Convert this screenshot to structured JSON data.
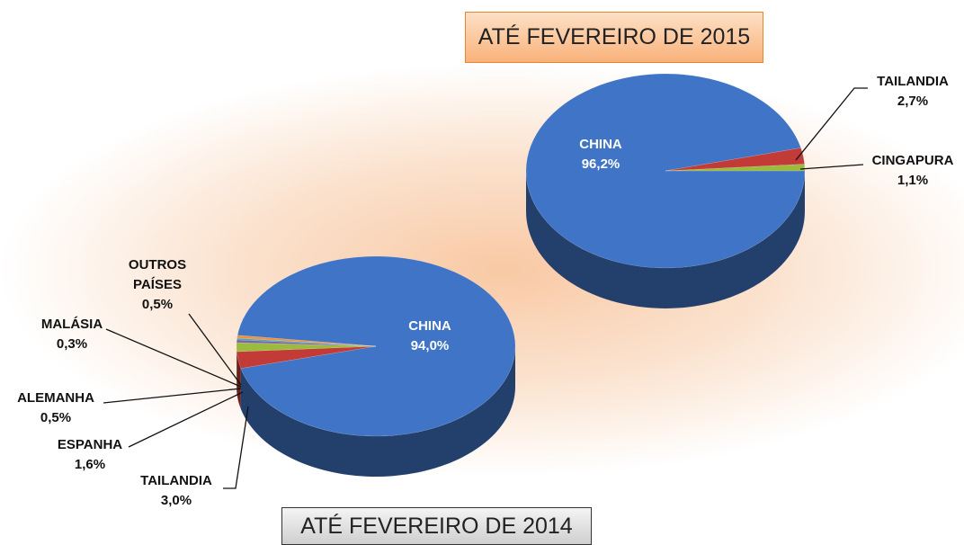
{
  "chart_data": [
    {
      "type": "pie",
      "title": "ATÉ FEVEREIRO DE 2015",
      "categories": [
        "CHINA",
        "TAILANDIA",
        "CINGAPURA"
      ],
      "values": [
        96.2,
        2.7,
        1.1
      ],
      "value_labels": [
        "96,2%",
        "2,7%",
        "1,1%"
      ],
      "colors": [
        "#3f74c6",
        "#c23b36",
        "#9bbb3f"
      ]
    },
    {
      "type": "pie",
      "title": "ATÉ FEVEREIRO DE 2014",
      "categories": [
        "CHINA",
        "TAILANDIA",
        "ESPANHA",
        "ALEMANHA",
        "MALÁSIA",
        "OUTROS PAÍSES"
      ],
      "values": [
        94.0,
        3.0,
        1.6,
        0.5,
        0.3,
        0.5
      ],
      "value_labels": [
        "94,0%",
        "3,0%",
        "1,6%",
        "0,5%",
        "0,3%",
        "0,5%"
      ],
      "colors": [
        "#3f74c6",
        "#c23b36",
        "#9bbb3f",
        "#7f62a8",
        "#3fa9c4",
        "#f0923a"
      ]
    }
  ]
}
